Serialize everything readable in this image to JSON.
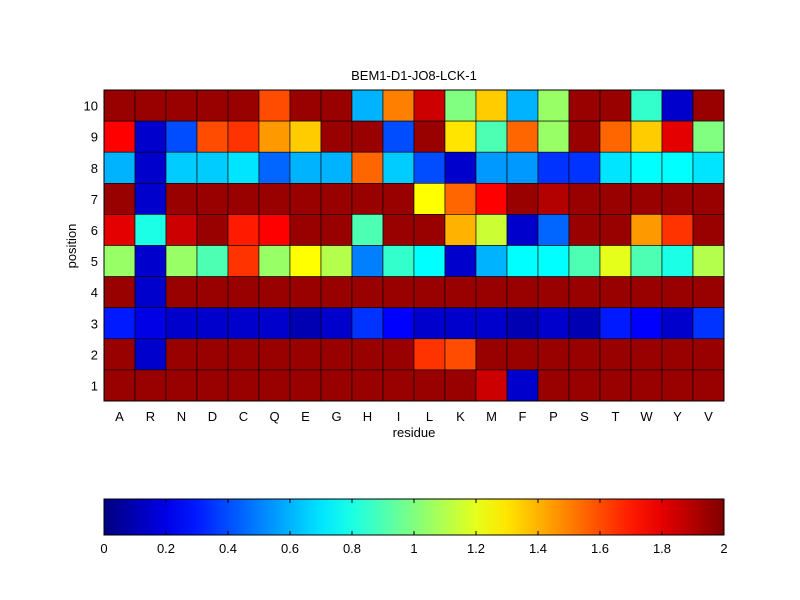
{
  "chart_data": {
    "type": "heatmap",
    "title": "BEM1-D1-JO8-LCK-1",
    "xlabel": "residue",
    "ylabel": "position",
    "columns": [
      "A",
      "R",
      "N",
      "D",
      "C",
      "Q",
      "E",
      "G",
      "H",
      "I",
      "L",
      "K",
      "M",
      "F",
      "P",
      "S",
      "T",
      "W",
      "Y",
      "V"
    ],
    "rows": [
      "10",
      "9",
      "8",
      "7",
      "6",
      "5",
      "4",
      "3",
      "2",
      "1"
    ],
    "values": [
      [
        1.95,
        1.95,
        1.95,
        1.95,
        1.95,
        1.6,
        1.95,
        1.95,
        0.6,
        1.5,
        1.85,
        1.0,
        1.35,
        0.6,
        1.05,
        1.95,
        1.95,
        0.85,
        0.15,
        1.95
      ],
      [
        1.75,
        0.15,
        0.4,
        1.6,
        1.65,
        1.45,
        1.35,
        1.95,
        1.95,
        0.4,
        1.95,
        1.3,
        0.9,
        1.55,
        1.05,
        1.95,
        1.55,
        1.35,
        1.8,
        1.0
      ],
      [
        0.6,
        0.15,
        0.65,
        0.65,
        0.7,
        0.45,
        0.6,
        0.6,
        1.55,
        0.65,
        0.4,
        0.15,
        0.55,
        0.55,
        0.35,
        0.35,
        0.7,
        0.75,
        0.75,
        0.7
      ],
      [
        1.95,
        0.15,
        1.95,
        1.95,
        1.95,
        1.95,
        1.95,
        1.95,
        1.95,
        1.95,
        1.25,
        1.55,
        1.75,
        1.95,
        1.9,
        1.95,
        1.95,
        1.95,
        1.95,
        1.95
      ],
      [
        1.8,
        0.8,
        1.85,
        1.95,
        1.7,
        1.75,
        1.95,
        1.95,
        0.9,
        1.95,
        1.95,
        1.4,
        1.15,
        0.15,
        0.45,
        1.95,
        1.95,
        1.45,
        1.65,
        1.95
      ],
      [
        1.05,
        0.15,
        1.05,
        0.9,
        1.65,
        1.05,
        1.25,
        1.1,
        0.5,
        0.85,
        0.75,
        0.15,
        0.6,
        0.75,
        0.75,
        0.9,
        1.2,
        0.9,
        0.8,
        1.1
      ],
      [
        1.95,
        0.15,
        1.95,
        1.95,
        1.95,
        1.95,
        1.95,
        1.95,
        1.95,
        1.95,
        1.95,
        1.95,
        1.95,
        1.95,
        1.95,
        1.95,
        1.95,
        1.95,
        1.95,
        1.95
      ],
      [
        0.3,
        0.2,
        0.15,
        0.15,
        0.15,
        0.15,
        0.1,
        0.15,
        0.35,
        0.25,
        0.15,
        0.15,
        0.15,
        0.1,
        0.15,
        0.1,
        0.3,
        0.25,
        0.15,
        0.35
      ],
      [
        1.95,
        0.15,
        1.95,
        1.95,
        1.95,
        1.95,
        1.95,
        1.95,
        1.95,
        1.95,
        1.65,
        1.6,
        1.95,
        1.95,
        1.95,
        1.95,
        1.95,
        1.95,
        1.95,
        1.95
      ],
      [
        1.95,
        1.95,
        1.95,
        1.95,
        1.95,
        1.95,
        1.95,
        1.95,
        1.95,
        1.95,
        1.95,
        1.95,
        1.85,
        0.15,
        1.95,
        1.95,
        1.95,
        1.95,
        1.95,
        1.95
      ]
    ],
    "colorbar": {
      "colormap": "jet",
      "range": [
        0,
        2
      ],
      "ticks": [
        "0",
        "0.2",
        "0.4",
        "0.6",
        "0.8",
        "1",
        "1.2",
        "1.4",
        "1.6",
        "1.8",
        "2"
      ]
    },
    "grid": true
  }
}
